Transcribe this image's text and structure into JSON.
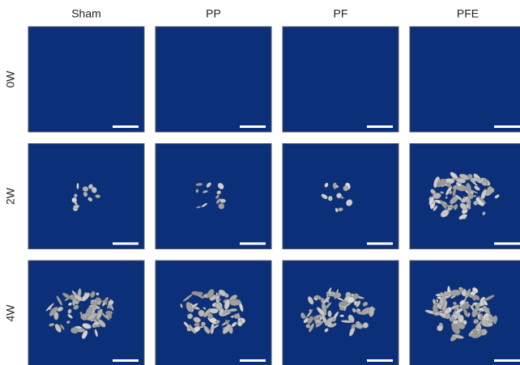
{
  "columns": [
    "Sham",
    "PP",
    "PF",
    "PFE"
  ],
  "rows": [
    "0W",
    "2W",
    "4W"
  ]
}
